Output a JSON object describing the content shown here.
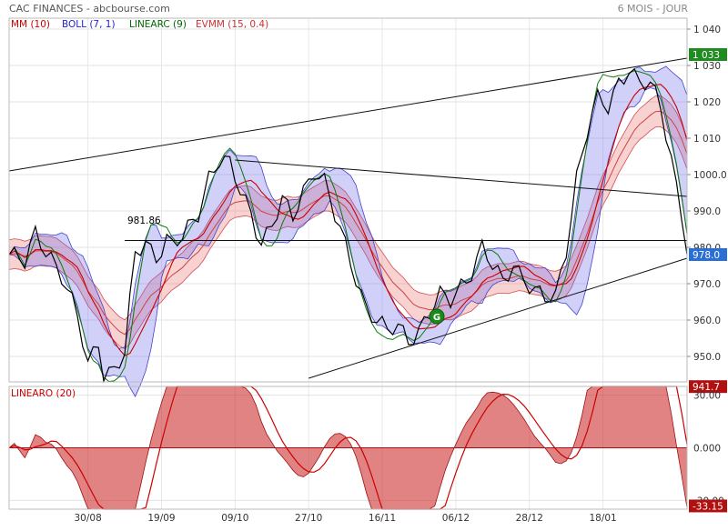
{
  "header": {
    "title": "CAC FINANCES - abcbourse.com",
    "period": "6 MOIS - JOUR"
  },
  "legend": [
    {
      "label": "MM (10)",
      "color": "#cc0000"
    },
    {
      "label": "BOLL (7, 1)",
      "color": "#2222cc"
    },
    {
      "label": "LINEARC (9)",
      "color": "#006600"
    },
    {
      "label": "EVMM (15, 0.4)",
      "color": "#cc3333"
    }
  ],
  "price_axis": {
    "ticks": [
      "1 040",
      "1 030",
      "1 020",
      "1 010",
      "1000.0",
      "990.0",
      "980.0",
      "970.0",
      "960.0",
      "950.0"
    ],
    "tick_values": [
      1040,
      1030,
      1020,
      1010,
      1000,
      990,
      980,
      970,
      960,
      950
    ],
    "badges": [
      {
        "text": "1 033",
        "value": 1033,
        "color": "#1f8c1f"
      },
      {
        "text": "978.0",
        "value": 978.0,
        "color": "#2a6fd6"
      },
      {
        "text": "941.7",
        "value": 941.7,
        "color": "#b01010"
      }
    ]
  },
  "annotations": {
    "hline_label": "981.86",
    "hline_value": 981.86,
    "marker": "G"
  },
  "osc": {
    "label": "LINEARO (20)",
    "ticks": [
      "30.00",
      "0.000",
      "-30.00"
    ],
    "tick_values": [
      30,
      0,
      -30
    ],
    "badge": {
      "text": "-33.15",
      "value": -33.15,
      "color": "#b01010"
    }
  },
  "x_axis": {
    "labels": [
      "30/08",
      "19/09",
      "09/10",
      "27/10",
      "16/11",
      "06/12",
      "28/12",
      "18/01"
    ],
    "label_index": [
      15,
      29,
      43,
      57,
      71,
      85,
      99,
      113
    ]
  },
  "chart_data": {
    "type": "line",
    "title": "CAC FINANCES - abcbourse.com",
    "n": 130,
    "close_keyframes": [
      [
        0,
        978
      ],
      [
        3,
        975
      ],
      [
        5,
        984
      ],
      [
        8,
        978
      ],
      [
        10,
        972
      ],
      [
        12,
        964
      ],
      [
        13,
        960
      ],
      [
        15,
        948
      ],
      [
        17,
        955
      ],
      [
        18,
        946
      ],
      [
        20,
        946
      ],
      [
        22,
        950
      ],
      [
        24,
        978
      ],
      [
        26,
        982
      ],
      [
        28,
        978
      ],
      [
        30,
        982
      ],
      [
        31,
        980
      ],
      [
        33,
        982
      ],
      [
        36,
        990
      ],
      [
        38,
        1000
      ],
      [
        40,
        1004
      ],
      [
        42,
        1002
      ],
      [
        44,
        995
      ],
      [
        46,
        990
      ],
      [
        48,
        982
      ],
      [
        50,
        986
      ],
      [
        52,
        992
      ],
      [
        54,
        988
      ],
      [
        56,
        996
      ],
      [
        58,
        1002
      ],
      [
        60,
        998
      ],
      [
        62,
        988
      ],
      [
        64,
        980
      ],
      [
        66,
        972
      ],
      [
        68,
        964
      ],
      [
        70,
        960
      ],
      [
        72,
        956
      ],
      [
        74,
        958
      ],
      [
        76,
        955
      ],
      [
        78,
        958
      ],
      [
        80,
        962
      ],
      [
        82,
        966
      ],
      [
        84,
        965
      ],
      [
        86,
        970
      ],
      [
        88,
        974
      ],
      [
        90,
        980
      ],
      [
        92,
        974
      ],
      [
        94,
        970
      ],
      [
        96,
        976
      ],
      [
        98,
        972
      ],
      [
        100,
        968
      ],
      [
        102,
        965
      ],
      [
        104,
        966
      ],
      [
        106,
        980
      ],
      [
        108,
        1000
      ],
      [
        110,
        1012
      ],
      [
        112,
        1020
      ],
      [
        114,
        1018
      ],
      [
        116,
        1026
      ],
      [
        118,
        1030
      ],
      [
        120,
        1025
      ],
      [
        122,
        1024
      ],
      [
        124,
        1018
      ],
      [
        126,
        1005
      ],
      [
        128,
        990
      ],
      [
        129,
        978
      ]
    ],
    "series": [
      {
        "name": "MM (10)",
        "color": "#cc0000"
      },
      {
        "name": "BOLL (7, 1)",
        "color": "#2222cc"
      },
      {
        "name": "LINEARC (9)",
        "color": "#006600"
      },
      {
        "name": "EVMM (15, 0.4)",
        "color": "#cc3333"
      },
      {
        "name": "LINEARO (20)",
        "color": "#cc0000"
      }
    ],
    "ylim": [
      943,
      1043
    ],
    "osc_ylim": [
      -35,
      35
    ]
  }
}
